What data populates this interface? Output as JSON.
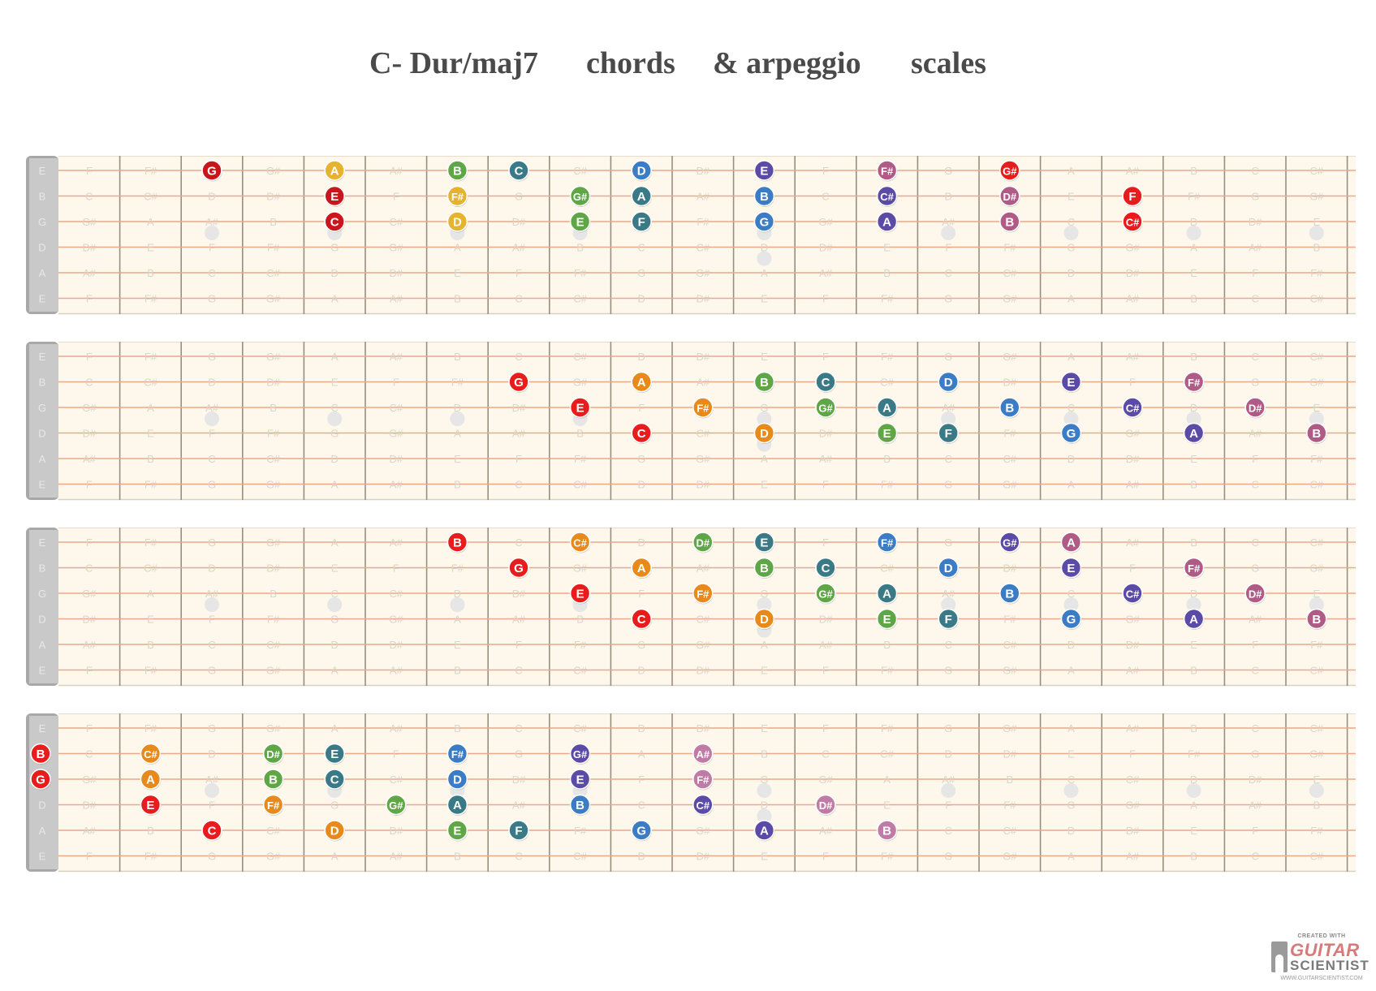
{
  "title": {
    "part1": "C- Dur/maj7",
    "part2": "chords",
    "part3": "& arpeggio",
    "part4": "scales"
  },
  "tuning": [
    "E",
    "B",
    "G",
    "D",
    "A",
    "E"
  ],
  "frets": 21,
  "fret_note_grid": [
    [
      "F",
      "F#",
      "G",
      "G#",
      "A",
      "A#",
      "B",
      "C",
      "C#",
      "D",
      "D#",
      "E",
      "F",
      "F#",
      "G",
      "G#",
      "A",
      "A#",
      "B",
      "C",
      "C#"
    ],
    [
      "C",
      "C#",
      "D",
      "D#",
      "E",
      "F",
      "F#",
      "G",
      "G#",
      "A",
      "A#",
      "B",
      "C",
      "C#",
      "D",
      "D#",
      "E",
      "F",
      "F#",
      "G",
      "G#"
    ],
    [
      "G#",
      "A",
      "A#",
      "B",
      "C",
      "C#",
      "D",
      "D#",
      "E",
      "F",
      "F#",
      "G",
      "G#",
      "A",
      "A#",
      "B",
      "C",
      "C#",
      "D",
      "D#",
      "E"
    ],
    [
      "D#",
      "E",
      "F",
      "F#",
      "G",
      "G#",
      "A",
      "A#",
      "B",
      "C",
      "C#",
      "D",
      "D#",
      "E",
      "F",
      "F#",
      "G",
      "G#",
      "A",
      "A#",
      "B"
    ],
    [
      "A#",
      "B",
      "C",
      "C#",
      "D",
      "D#",
      "E",
      "F",
      "F#",
      "G",
      "G#",
      "A",
      "A#",
      "B",
      "C",
      "C#",
      "D",
      "D#",
      "E",
      "F",
      "F#"
    ],
    [
      "F",
      "F#",
      "G",
      "G#",
      "A",
      "A#",
      "B",
      "C",
      "C#",
      "D",
      "D#",
      "E",
      "F",
      "F#",
      "G",
      "G#",
      "A",
      "A#",
      "B",
      "C",
      "C#"
    ]
  ],
  "inlay_frets": [
    3,
    5,
    7,
    9,
    12,
    15,
    17,
    19,
    21
  ],
  "note_colors": {
    "C": "#e81c1c",
    "C#": "#e8891c",
    "D": "#e8911c",
    "D#": "#64a43c",
    "E": "#3a6e85",
    "F": "#3a6e85",
    "F#": "#3b7cc4",
    "G": "#3b7cc4",
    "G#": "#5b4aa6",
    "A": "#5b4aa6",
    "A#": "#b05a86",
    "B": "#b05a86"
  },
  "fretboards": [
    {
      "notes": [
        {
          "s": 0,
          "f": 3,
          "n": "G",
          "c": "#c8161c"
        },
        {
          "s": 0,
          "f": 5,
          "n": "A",
          "c": "#e6b32e"
        },
        {
          "s": 0,
          "f": 7,
          "n": "B",
          "c": "#5fa746"
        },
        {
          "s": 0,
          "f": 8,
          "n": "C",
          "c": "#3a7a86"
        },
        {
          "s": 0,
          "f": 10,
          "n": "D",
          "c": "#3b7cc4"
        },
        {
          "s": 0,
          "f": 12,
          "n": "E",
          "c": "#5b4aa6"
        },
        {
          "s": 0,
          "f": 14,
          "n": "F#",
          "c": "#b05a86"
        },
        {
          "s": 0,
          "f": 16,
          "n": "G#",
          "c": "#e81c1c"
        },
        {
          "s": 1,
          "f": 5,
          "n": "E",
          "c": "#c8161c"
        },
        {
          "s": 1,
          "f": 7,
          "n": "F#",
          "c": "#e6b32e"
        },
        {
          "s": 1,
          "f": 9,
          "n": "G#",
          "c": "#5fa746"
        },
        {
          "s": 1,
          "f": 10,
          "n": "A",
          "c": "#3a7a86"
        },
        {
          "s": 1,
          "f": 12,
          "n": "B",
          "c": "#3b7cc4"
        },
        {
          "s": 1,
          "f": 14,
          "n": "C#",
          "c": "#5b4aa6"
        },
        {
          "s": 1,
          "f": 16,
          "n": "D#",
          "c": "#b05a86"
        },
        {
          "s": 1,
          "f": 18,
          "n": "F",
          "c": "#e81c1c"
        },
        {
          "s": 2,
          "f": 5,
          "n": "C",
          "c": "#c8161c"
        },
        {
          "s": 2,
          "f": 7,
          "n": "D",
          "c": "#e6b32e"
        },
        {
          "s": 2,
          "f": 9,
          "n": "E",
          "c": "#5fa746"
        },
        {
          "s": 2,
          "f": 10,
          "n": "F",
          "c": "#3a7a86"
        },
        {
          "s": 2,
          "f": 12,
          "n": "G",
          "c": "#3b7cc4"
        },
        {
          "s": 2,
          "f": 14,
          "n": "A",
          "c": "#5b4aa6"
        },
        {
          "s": 2,
          "f": 16,
          "n": "B",
          "c": "#b05a86"
        },
        {
          "s": 2,
          "f": 18,
          "n": "C#",
          "c": "#e81c1c"
        }
      ]
    },
    {
      "notes": [
        {
          "s": 1,
          "f": 8,
          "n": "G",
          "c": "#e81c1c"
        },
        {
          "s": 1,
          "f": 10,
          "n": "A",
          "c": "#e8891c"
        },
        {
          "s": 1,
          "f": 12,
          "n": "B",
          "c": "#5fa746"
        },
        {
          "s": 1,
          "f": 13,
          "n": "C",
          "c": "#3a7a86"
        },
        {
          "s": 1,
          "f": 15,
          "n": "D",
          "c": "#3b7cc4"
        },
        {
          "s": 1,
          "f": 17,
          "n": "E",
          "c": "#5b4aa6"
        },
        {
          "s": 1,
          "f": 19,
          "n": "F#",
          "c": "#b05a86"
        },
        {
          "s": 2,
          "f": 9,
          "n": "E",
          "c": "#e81c1c"
        },
        {
          "s": 2,
          "f": 11,
          "n": "F#",
          "c": "#e8891c"
        },
        {
          "s": 2,
          "f": 13,
          "n": "G#",
          "c": "#5fa746"
        },
        {
          "s": 2,
          "f": 14,
          "n": "A",
          "c": "#3a7a86"
        },
        {
          "s": 2,
          "f": 16,
          "n": "B",
          "c": "#3b7cc4"
        },
        {
          "s": 2,
          "f": 18,
          "n": "C#",
          "c": "#5b4aa6"
        },
        {
          "s": 2,
          "f": 20,
          "n": "D#",
          "c": "#b05a86"
        },
        {
          "s": 3,
          "f": 10,
          "n": "C",
          "c": "#e81c1c"
        },
        {
          "s": 3,
          "f": 12,
          "n": "D",
          "c": "#e8891c"
        },
        {
          "s": 3,
          "f": 14,
          "n": "E",
          "c": "#5fa746"
        },
        {
          "s": 3,
          "f": 15,
          "n": "F",
          "c": "#3a7a86"
        },
        {
          "s": 3,
          "f": 17,
          "n": "G",
          "c": "#3b7cc4"
        },
        {
          "s": 3,
          "f": 19,
          "n": "A",
          "c": "#5b4aa6"
        },
        {
          "s": 3,
          "f": 21,
          "n": "B",
          "c": "#b05a86"
        }
      ]
    },
    {
      "notes": [
        {
          "s": 0,
          "f": 7,
          "n": "B",
          "c": "#e81c1c"
        },
        {
          "s": 0,
          "f": 9,
          "n": "C#",
          "c": "#e8891c"
        },
        {
          "s": 0,
          "f": 11,
          "n": "D#",
          "c": "#5fa746"
        },
        {
          "s": 0,
          "f": 12,
          "n": "E",
          "c": "#3a7a86"
        },
        {
          "s": 0,
          "f": 14,
          "n": "F#",
          "c": "#3b7cc4"
        },
        {
          "s": 0,
          "f": 16,
          "n": "G#",
          "c": "#5b4aa6"
        },
        {
          "s": 0,
          "f": 17,
          "n": "A",
          "c": "#b05a86"
        },
        {
          "s": 1,
          "f": 8,
          "n": "G",
          "c": "#e81c1c"
        },
        {
          "s": 1,
          "f": 10,
          "n": "A",
          "c": "#e8891c"
        },
        {
          "s": 1,
          "f": 12,
          "n": "B",
          "c": "#5fa746"
        },
        {
          "s": 1,
          "f": 13,
          "n": "C",
          "c": "#3a7a86"
        },
        {
          "s": 1,
          "f": 15,
          "n": "D",
          "c": "#3b7cc4"
        },
        {
          "s": 1,
          "f": 17,
          "n": "E",
          "c": "#5b4aa6"
        },
        {
          "s": 1,
          "f": 19,
          "n": "F#",
          "c": "#b05a86"
        },
        {
          "s": 2,
          "f": 9,
          "n": "E",
          "c": "#e81c1c"
        },
        {
          "s": 2,
          "f": 11,
          "n": "F#",
          "c": "#e8891c"
        },
        {
          "s": 2,
          "f": 13,
          "n": "G#",
          "c": "#5fa746"
        },
        {
          "s": 2,
          "f": 14,
          "n": "A",
          "c": "#3a7a86"
        },
        {
          "s": 2,
          "f": 16,
          "n": "B",
          "c": "#3b7cc4"
        },
        {
          "s": 2,
          "f": 18,
          "n": "C#",
          "c": "#5b4aa6"
        },
        {
          "s": 2,
          "f": 20,
          "n": "D#",
          "c": "#b05a86"
        },
        {
          "s": 3,
          "f": 10,
          "n": "C",
          "c": "#e81c1c"
        },
        {
          "s": 3,
          "f": 12,
          "n": "D",
          "c": "#e8891c"
        },
        {
          "s": 3,
          "f": 14,
          "n": "E",
          "c": "#5fa746"
        },
        {
          "s": 3,
          "f": 15,
          "n": "F",
          "c": "#3a7a86"
        },
        {
          "s": 3,
          "f": 17,
          "n": "G",
          "c": "#3b7cc4"
        },
        {
          "s": 3,
          "f": 19,
          "n": "A",
          "c": "#5b4aa6"
        },
        {
          "s": 3,
          "f": 21,
          "n": "B",
          "c": "#b05a86"
        }
      ]
    },
    {
      "notes": [
        {
          "s": 1,
          "f": 0,
          "n": "B",
          "c": "#e81c1c"
        },
        {
          "s": 2,
          "f": 0,
          "n": "G",
          "c": "#e81c1c"
        },
        {
          "s": 1,
          "f": 2,
          "n": "C#",
          "c": "#e8891c"
        },
        {
          "s": 1,
          "f": 4,
          "n": "D#",
          "c": "#5fa746"
        },
        {
          "s": 1,
          "f": 5,
          "n": "E",
          "c": "#3a7a86"
        },
        {
          "s": 1,
          "f": 7,
          "n": "F#",
          "c": "#3b7cc4"
        },
        {
          "s": 1,
          "f": 9,
          "n": "G#",
          "c": "#5b4aa6"
        },
        {
          "s": 1,
          "f": 11,
          "n": "A#",
          "c": "#c07aa6"
        },
        {
          "s": 2,
          "f": 2,
          "n": "A",
          "c": "#e8891c"
        },
        {
          "s": 2,
          "f": 4,
          "n": "B",
          "c": "#5fa746"
        },
        {
          "s": 2,
          "f": 5,
          "n": "C",
          "c": "#3a7a86"
        },
        {
          "s": 2,
          "f": 7,
          "n": "D",
          "c": "#3b7cc4"
        },
        {
          "s": 2,
          "f": 9,
          "n": "E",
          "c": "#5b4aa6"
        },
        {
          "s": 2,
          "f": 11,
          "n": "F#",
          "c": "#c07aa6"
        },
        {
          "s": 3,
          "f": 2,
          "n": "E",
          "c": "#e81c1c"
        },
        {
          "s": 3,
          "f": 4,
          "n": "F#",
          "c": "#e8891c"
        },
        {
          "s": 3,
          "f": 6,
          "n": "G#",
          "c": "#5fa746"
        },
        {
          "s": 3,
          "f": 7,
          "n": "A",
          "c": "#3a7a86"
        },
        {
          "s": 3,
          "f": 9,
          "n": "B",
          "c": "#3b7cc4"
        },
        {
          "s": 3,
          "f": 11,
          "n": "C#",
          "c": "#5b4aa6"
        },
        {
          "s": 3,
          "f": 13,
          "n": "D#",
          "c": "#c07aa6"
        },
        {
          "s": 4,
          "f": 3,
          "n": "C",
          "c": "#e81c1c"
        },
        {
          "s": 4,
          "f": 5,
          "n": "D",
          "c": "#e8891c"
        },
        {
          "s": 4,
          "f": 7,
          "n": "E",
          "c": "#5fa746"
        },
        {
          "s": 4,
          "f": 8,
          "n": "F",
          "c": "#3a7a86"
        },
        {
          "s": 4,
          "f": 10,
          "n": "G",
          "c": "#3b7cc4"
        },
        {
          "s": 4,
          "f": 12,
          "n": "A",
          "c": "#5b4aa6"
        },
        {
          "s": 4,
          "f": 14,
          "n": "B",
          "c": "#c07aa6"
        }
      ]
    }
  ],
  "logo": {
    "caption": "CREATED WITH",
    "line1": "GUITAR",
    "line2": "SCIENTIST",
    "url": "WWW.GUITARSCIENTIST.COM"
  }
}
